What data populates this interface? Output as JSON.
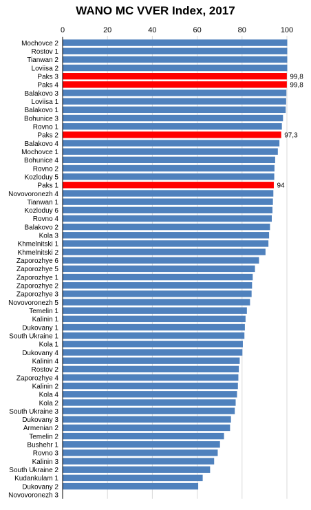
{
  "chart_data": {
    "type": "bar",
    "orientation": "horizontal",
    "title": "WANO MC VVER Index, 2017",
    "xlabel": "",
    "ylabel": "",
    "xlim": [
      0,
      100
    ],
    "xticks": [
      0,
      20,
      40,
      60,
      80,
      100
    ],
    "tick_labels": [
      "0",
      "20",
      "40",
      "60",
      "80",
      "100"
    ],
    "grid": true,
    "legend": "none",
    "colors": {
      "default": "#4f81bd",
      "highlight": "#ff0000"
    },
    "categories": [
      "Mochovce 2",
      "Rostov 1",
      "Tianwan 2",
      "Loviisa 2",
      "Paks 3",
      "Paks 4",
      "Balakovo 3",
      "Loviisa 1",
      "Balakovo 1",
      "Bohunice 3",
      "Rovno 1",
      "Paks 2",
      "Balakovo 4",
      "Mochovce 1",
      "Bohunice 4",
      "Rovno 2",
      "Kozloduy 5",
      "Paks 1",
      "Novovoronezh 4",
      "Tianwan 1",
      "Kozloduy 6",
      "Rovno 4",
      "Balakovo 2",
      "Kola 3",
      "Khmelnitski 1",
      "Khmelnitski 2",
      "Zaporozhye 6",
      "Zaporozhye 5",
      "Zaporozhye 1",
      "Zaporozhye 2",
      "Zaporozhye 3",
      "Novovoronezh 5",
      "Temelin 1",
      "Kalinin 1",
      "Dukovany 1",
      "South Ukraine 1",
      "Kola 1",
      "Dukovany 4",
      "Kalinin 4",
      "Rostov 2",
      "Zaporozhye 4",
      "Kalinin 2",
      "Kola 4",
      "Kola 2",
      "South Ukraine 3",
      "Dukovany 3",
      "Armenian 2",
      "Temelin 2",
      "Bushehr 1",
      "Rovno 3",
      "Kalinin 3",
      "South Ukraine 2",
      "Kudankulam 1",
      "Dukovany 2",
      "Novovoronezh 3"
    ],
    "values": [
      100,
      100,
      100,
      100,
      99.8,
      99.8,
      99.6,
      99.5,
      99.3,
      98.1,
      97.6,
      97.3,
      96.5,
      95.8,
      94.6,
      94.3,
      94.2,
      94,
      93.8,
      93.6,
      93.4,
      93.1,
      92.3,
      91.9,
      91.6,
      90.3,
      87.4,
      85.6,
      84.6,
      84.3,
      84.1,
      83.4,
      82,
      81.4,
      81.1,
      80.9,
      80.2,
      80,
      78.8,
      78.4,
      78.2,
      78,
      77.6,
      77,
      76.6,
      74.9,
      74.5,
      71.8,
      70,
      69,
      67.4,
      65.6,
      62.3,
      60.3,
      0
    ],
    "highlighted": [
      "Paks 3",
      "Paks 4",
      "Paks 2",
      "Paks 1"
    ],
    "data_labels": [
      {
        "category": "Paks 3",
        "label": "99,8"
      },
      {
        "category": "Paks 4",
        "label": "99,8"
      },
      {
        "category": "Paks 2",
        "label": "97,3"
      },
      {
        "category": "Paks 1",
        "label": "94"
      }
    ]
  }
}
